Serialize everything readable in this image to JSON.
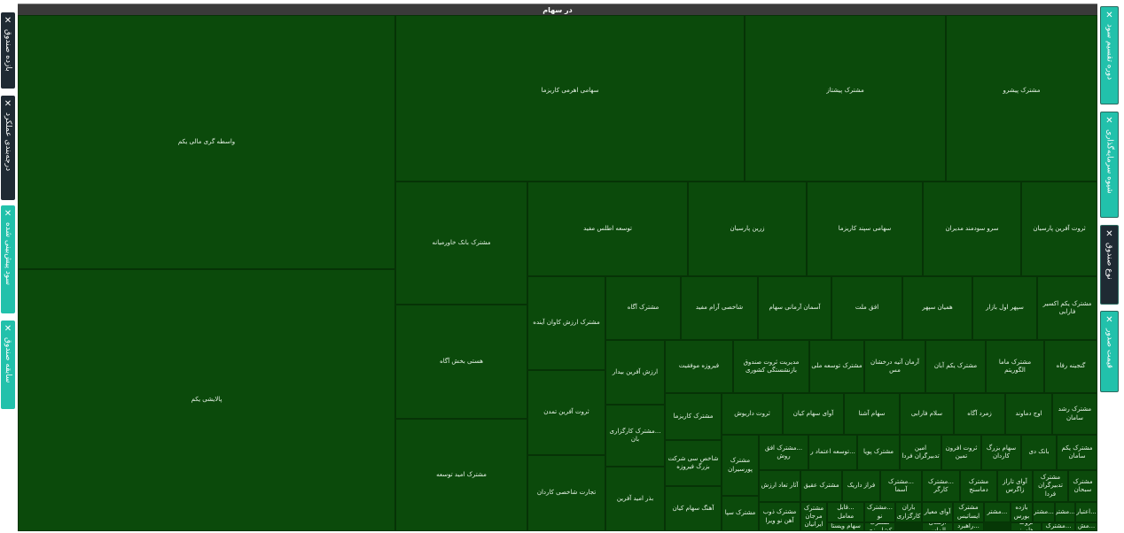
{
  "header": {
    "title": "در سهام"
  },
  "left_tabs": [
    {
      "label": "بازده صندوق",
      "style": "dark"
    },
    {
      "label": "درجه‌بندی عملکرد",
      "style": "dark"
    },
    {
      "label": "سود پیش‌بینی شده",
      "style": "teal"
    },
    {
      "label": "سابقه صندوق",
      "style": "teal"
    }
  ],
  "right_tabs": [
    {
      "label": "دوره تقسیم سود",
      "style": "teal"
    },
    {
      "label": "شیوه سرمایه‌گذاری",
      "style": "teal"
    },
    {
      "label": "نوع صندوق",
      "style": "dark"
    },
    {
      "label": "قیمت صدور",
      "style": "teal"
    }
  ],
  "close_glyph": "✕",
  "colors": {
    "tile": "#0b4a0b",
    "tab_dark": "#1f2a33",
    "tab_teal": "#22c1ab",
    "header": "#3a3a3a"
  },
  "treemap": {
    "items": [
      "واسطه گری مالی یکم",
      "پالایشی یکم",
      "سهامی اهرمی کاریزما",
      "مشترک پیشتاز",
      "مشترک پیشرو",
      "مشترک بانک خاورمیانه",
      "هستی بخش آگاه",
      "مشترک امید توسعه",
      "توسعه اطلس مفید",
      "زرین پارسیان",
      "سهامی سپند کاریزما",
      "سرو سودمند مدیران",
      "ثروت آفرین پارسیان",
      "مشترک ارزش کاوان آینده",
      "ثروت آفرین تمدن",
      "تجارت شاخصی کاردان",
      "مشترک آگاه",
      "شاخصی آرام مفید",
      "آسمان آرمانی سهام",
      "افق ملت",
      "همیان سپهر",
      "سپهر اول بازار",
      "مشترک یکم اکسیر فارابی",
      "ارزش آفرین بیدار",
      "...مشترک کارگزاری بان",
      "بذر امید آفرین",
      "فیروزه موفقیت",
      "مدیریت ثروت صندوق بازنشستگی کشوری",
      "مشترک توسعه ملی",
      "آرمان آتیه درخشان مس",
      "مشترک یکم آبان",
      "مشترک ماما الگوریتم",
      "گنجینه رفاه",
      "مشترک کاریزما",
      "شاخص سی شرکت بزرگ فیروزه",
      "آهنگ سهام کیان",
      "ثروت داریوش",
      "آوای سهام کیان",
      "سهام آشنا",
      "سلام فارابی",
      "زمرد آگاه",
      "اوج دماوند",
      "مشترک رشد سامان",
      "مشترک پورسیران",
      "مشترک سپا",
      "...مشترک افق روش",
      "...توسعه اعتماد ر",
      "مشترک پویا",
      "امین تدبیرگران فردا",
      "ثروت افرون تمین",
      "سهام بزرگ کاردان",
      "بانک دی",
      "مشترک یکم سامان",
      "آثار تعاد ارزش",
      "مشترک عقیق",
      "فراز داریک",
      "...مشترک آسما",
      "...مشترک کارگر",
      "مشترک دماسنج",
      "آوای تاراز زاگرس",
      "مشترک تدبیرگران فردا",
      "مشترک سبحان",
      "مشترک ذوب آهن نو ویرا",
      "مشترک مرجان ایرانیان",
      "...قابل معامل",
      "...مشترک نو",
      "باران کارگزاری",
      "آوای معیار",
      "مشترک ایساتیس",
      "...مشتر",
      "بازده بورس",
      "...مشتر",
      "...مشتر",
      "...اعتبار",
      "سهام ویستا",
      "مشترک کشاورزی",
      "ارمغان الماس",
      "...راهبرد",
      "ثروت هامرز",
      "...مشترک",
      "...مش"
    ]
  }
}
